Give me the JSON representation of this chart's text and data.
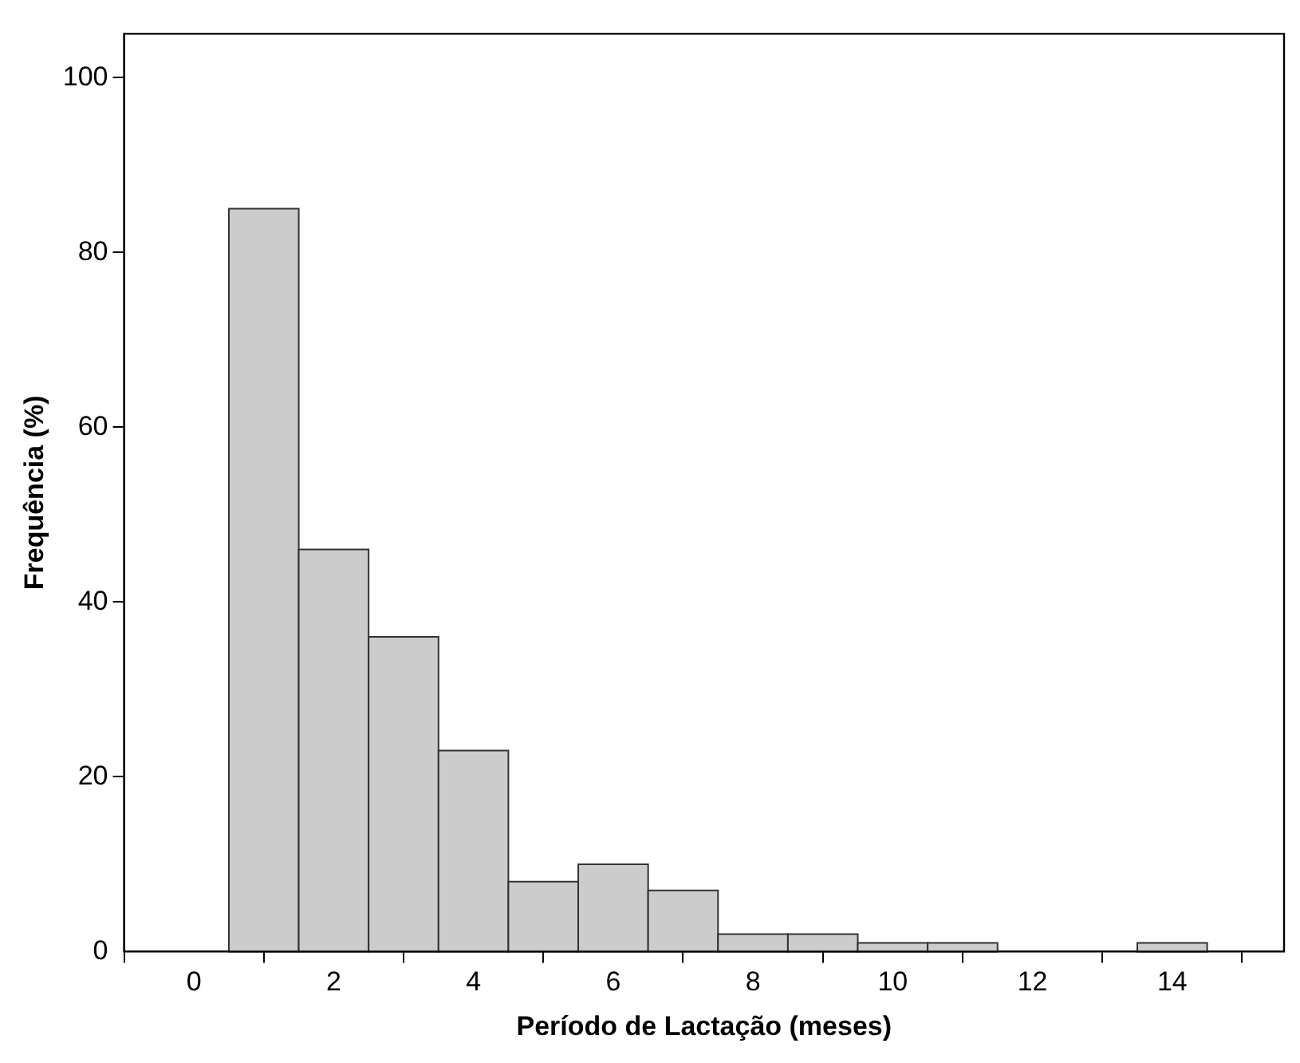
{
  "chart_data": {
    "type": "histogram",
    "xlabel": "Período de Lactação (meses)",
    "ylabel": "Frequência (%)",
    "bins": [
      0.5,
      1.5,
      2.5,
      3.5,
      4.5,
      5.5,
      6.5,
      7.5,
      8.5,
      9.5,
      10.5,
      11.5,
      12.5,
      13.5,
      14.5
    ],
    "values": [
      85,
      46,
      36,
      23,
      8,
      10,
      7,
      2,
      2,
      1,
      1,
      0,
      0,
      1
    ],
    "color": "#cccccc",
    "xlim": [
      -1,
      15.6
    ],
    "xticks": [
      0,
      2,
      4,
      6,
      8,
      10,
      12,
      14
    ],
    "ylim": [
      0,
      105
    ],
    "yticks": [
      0,
      20,
      40,
      60,
      80,
      100
    ],
    "grid": false,
    "legend": false
  }
}
